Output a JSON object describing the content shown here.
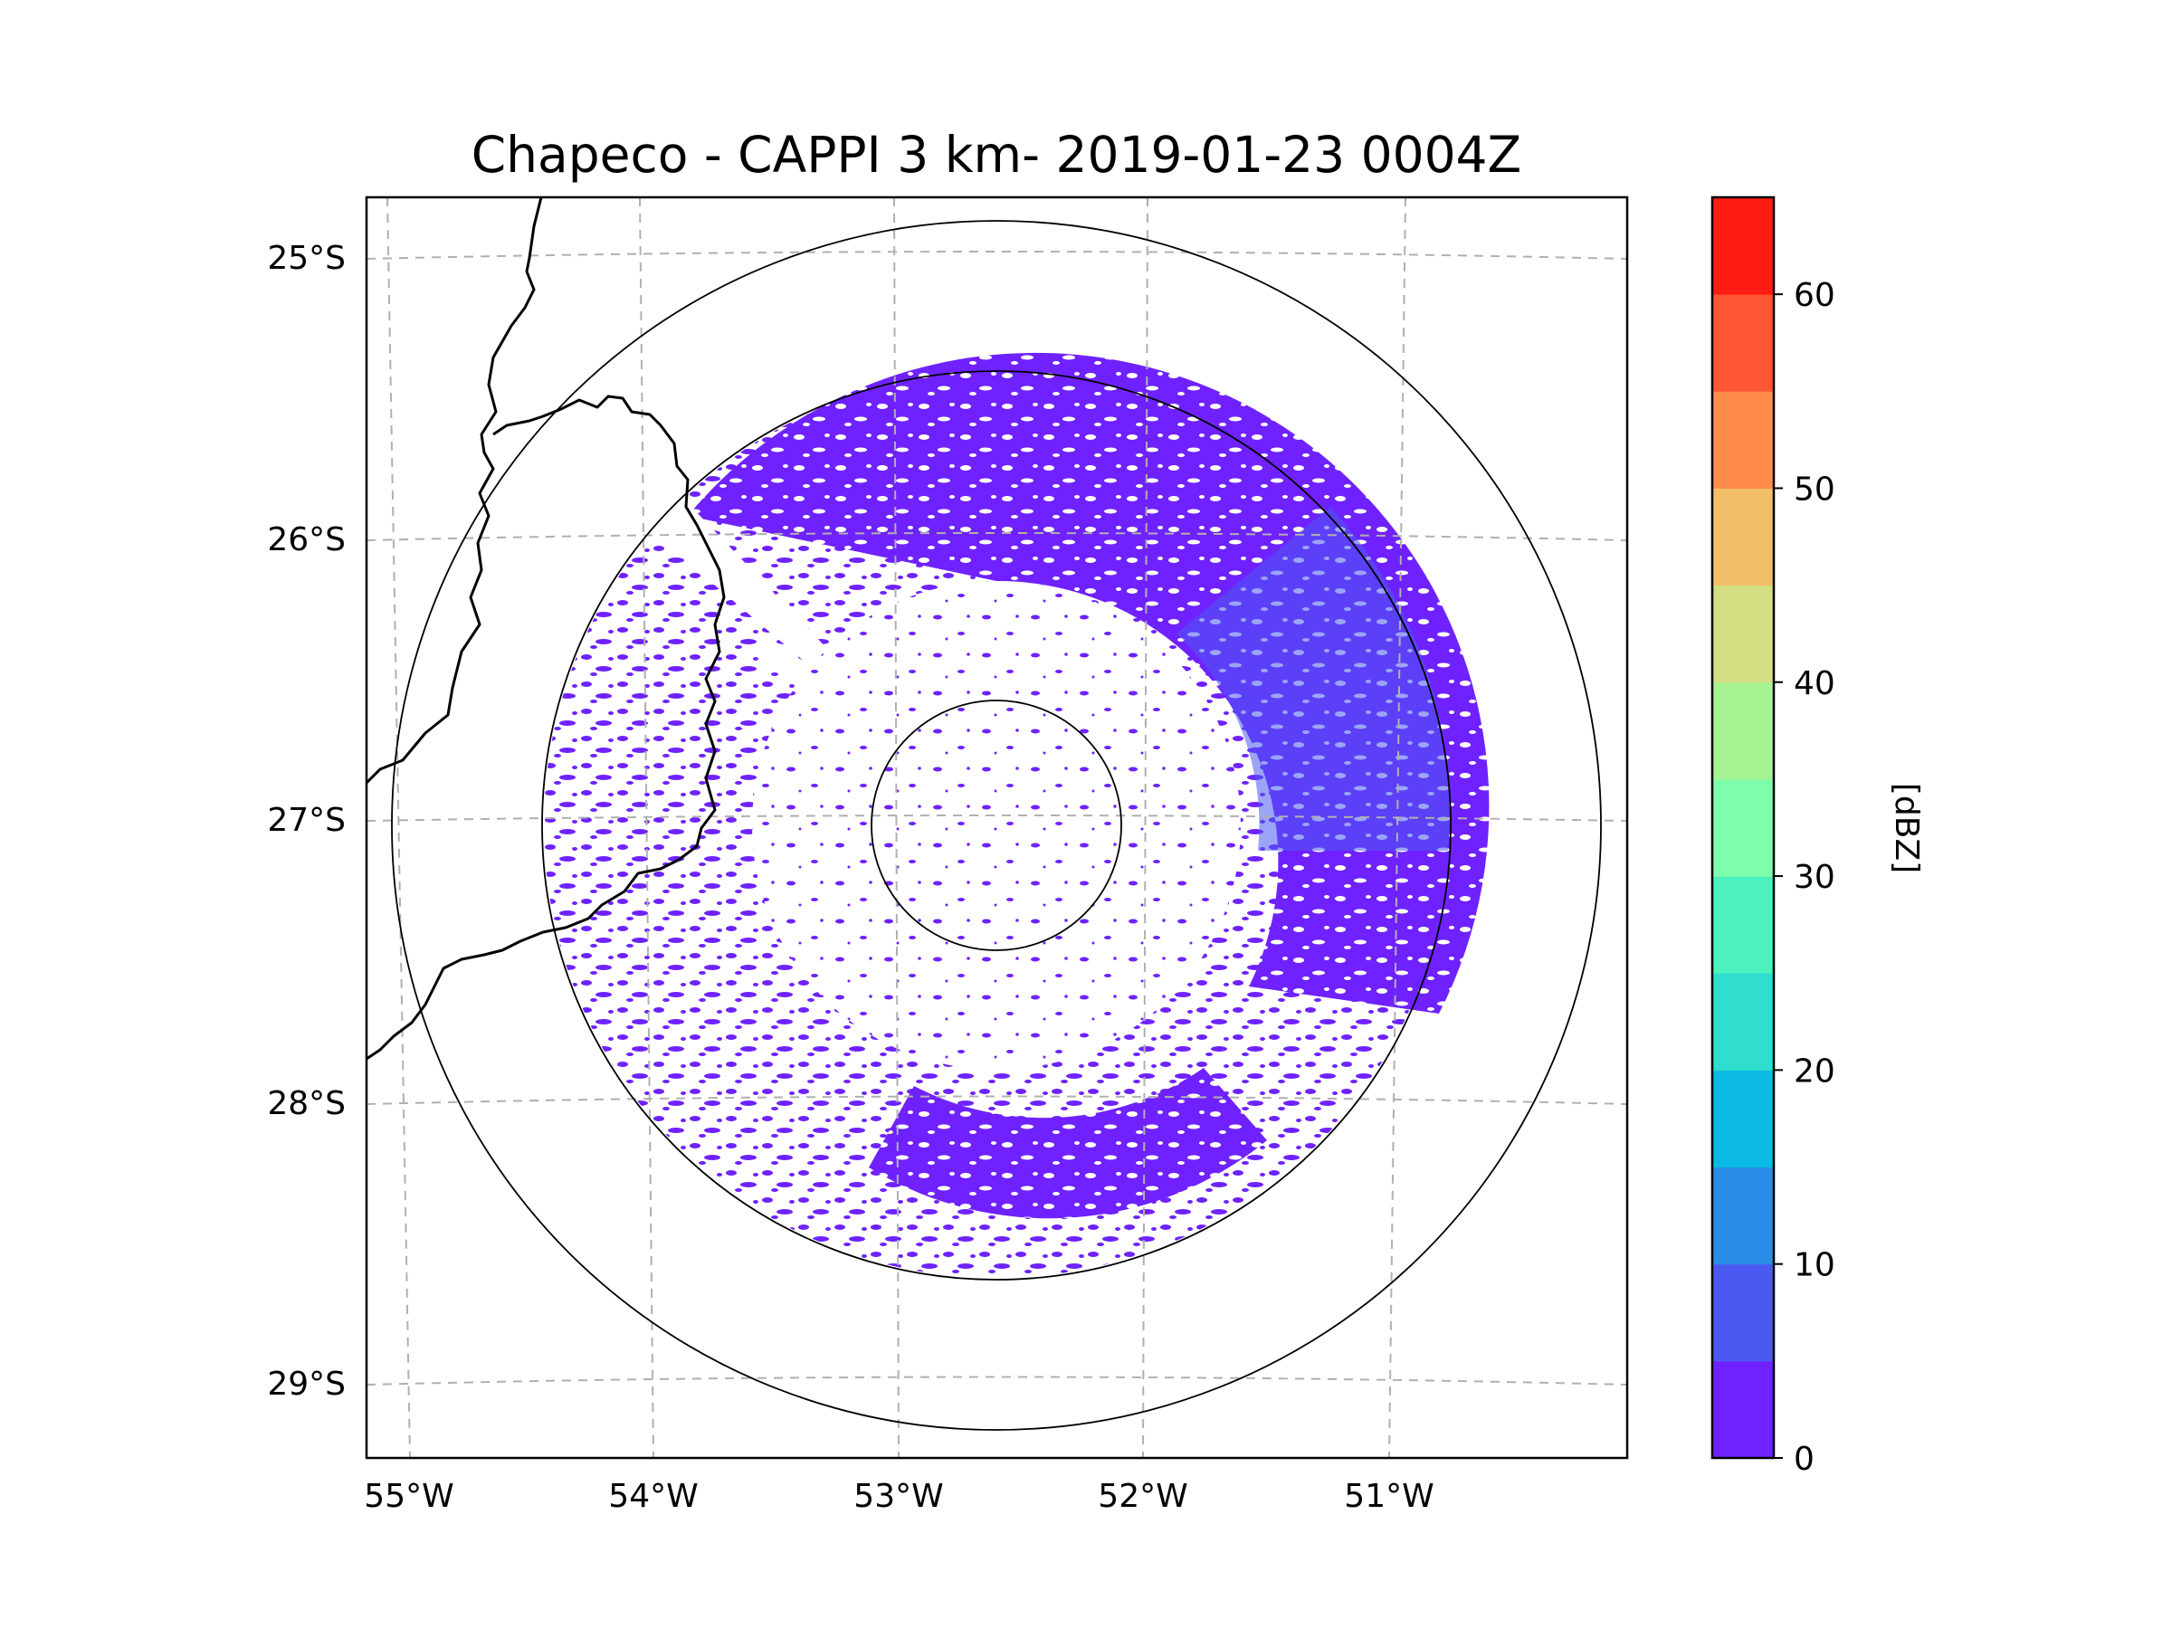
{
  "title": "Chapeco - CAPPI 3 km- 2019-01-23 0004Z",
  "map": {
    "lat_ticks": [
      "25°S",
      "26°S",
      "27°S",
      "28°S",
      "29°S"
    ],
    "lon_ticks": [
      "55°W",
      "54°W",
      "53°W",
      "52°W",
      "51°W"
    ],
    "radar_site": {
      "name": "Chapeco",
      "lat": -27.03,
      "lon": -52.6
    },
    "range_rings_km": [
      50,
      180,
      240
    ]
  },
  "colorbar": {
    "label": "[dBZ]",
    "ticks": [
      "0",
      "10",
      "20",
      "30",
      "40",
      "50",
      "60"
    ],
    "levels": [
      0,
      5,
      10,
      15,
      20,
      25,
      30,
      35,
      40,
      45,
      50,
      55,
      60,
      65
    ],
    "colors": [
      "#6f22ff",
      "#4a5af0",
      "#2a8ee8",
      "#0cbbe3",
      "#2fdecf",
      "#4cf2bd",
      "#80fdaa",
      "#a6f393",
      "#d3de82",
      "#f2bf69",
      "#ff8c4b",
      "#ff5733",
      "#ff1c14"
    ]
  },
  "colors": {
    "echo_primary": "#6f22ff",
    "echo_secondary": "#4a5af0",
    "gridline": "#b0b0b0",
    "coastline": "#000000"
  }
}
